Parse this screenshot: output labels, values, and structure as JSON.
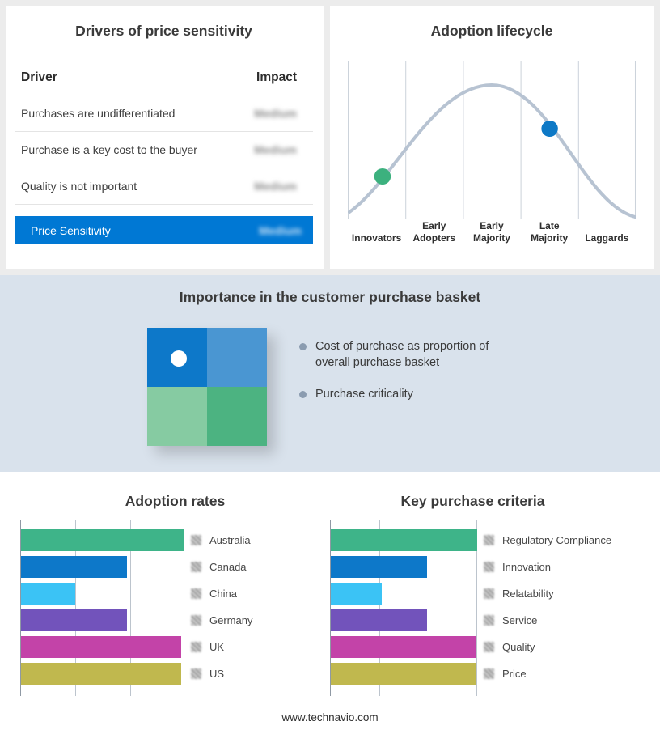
{
  "drivers": {
    "title": "Drivers of price sensitivity",
    "columns": {
      "driver": "Driver",
      "impact": "Impact"
    },
    "rows": [
      {
        "driver": "Purchases are undifferentiated",
        "impact": "Medium"
      },
      {
        "driver": "Purchase is a key cost to the buyer",
        "impact": "Medium"
      },
      {
        "driver": "Quality is not important",
        "impact": "Medium"
      }
    ],
    "highlight": {
      "label": "Price Sensitivity",
      "impact": "Medium",
      "color": "#0078d4"
    },
    "impact_values_blurred": true
  },
  "lifecycle": {
    "title": "Adoption lifecycle",
    "stages": [
      "Innovators",
      "Early Adopters",
      "Early Majority",
      "Late Majority",
      "Laggards"
    ],
    "curve_color": "#b7c3d2",
    "markers": [
      {
        "color": "#3cb17e",
        "position": "between Innovators and Early Adopters"
      },
      {
        "color": "#0e79c6",
        "position": "Late Majority"
      }
    ]
  },
  "basket": {
    "title": "Importance in the customer purchase basket",
    "band_color": "#d9e2ec",
    "bullets": [
      "Cost of purchase as proportion of overall purchase basket",
      "Purchase criticality"
    ],
    "quadrants": [
      "#0d78c9",
      "#4a96d2",
      "#86cba2",
      "#4cb381"
    ],
    "quadrant_marker_color": "#ffffff"
  },
  "footer": {
    "website": "www.technavio.com"
  },
  "chart_data": [
    {
      "type": "bar",
      "orientation": "horizontal",
      "title": "Adoption rates",
      "categories": [
        "Australia",
        "Canada",
        "China",
        "Germany",
        "UK",
        "US"
      ],
      "values": [
        100,
        65,
        33,
        65,
        98,
        98
      ],
      "values_unit": "percent of plot width (no numeric axis labels shown)",
      "colors": [
        "#3eb489",
        "#0d78c9",
        "#3bc3f5",
        "#7253bb",
        "#c343a8",
        "#c0b84e"
      ],
      "grid": true,
      "legend_position": "right"
    },
    {
      "type": "bar",
      "orientation": "horizontal",
      "title": "Key purchase criteria",
      "categories": [
        "Regulatory Compliance",
        "Innovation",
        "Relatability",
        "Service",
        "Quality",
        "Price"
      ],
      "values": [
        100,
        66,
        35,
        66,
        99,
        99
      ],
      "values_unit": "percent of plot width (no numeric axis labels shown)",
      "colors": [
        "#3eb489",
        "#0d78c9",
        "#3bc3f5",
        "#7253bb",
        "#c343a8",
        "#c0b84e"
      ],
      "grid": true,
      "legend_position": "right"
    },
    {
      "type": "line",
      "title": "Adoption lifecycle",
      "shape": "bell curve",
      "x_categories": [
        "Innovators",
        "Early Adopters",
        "Early Majority",
        "Late Majority",
        "Laggards"
      ],
      "markers": [
        {
          "x": "Innovators/Early Adopters boundary",
          "color": "#3cb17e"
        },
        {
          "x": "Late Majority",
          "color": "#0e79c6"
        }
      ]
    }
  ]
}
